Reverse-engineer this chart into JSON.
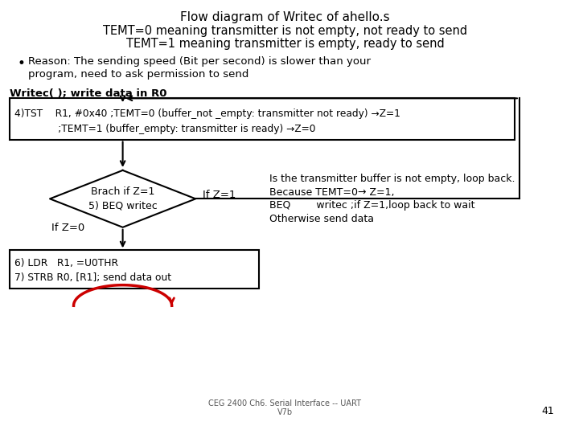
{
  "title_line1": "Flow diagram of Writec of ahello.s",
  "title_line2": "TEMT=0 meaning transmitter is not empty, not ready to send",
  "title_line3": "TEMT=1 meaning transmitter is empty, ready to send",
  "bullet_line1": "Reason: The sending speed (Bit per second) is slower than your",
  "bullet_line2": "program, need to ask permission to send",
  "label_writec": "Writec( ); write data in R0",
  "box_tst_line1": "4)TST    R1, #0x40 ;TEMT=0 (buffer_not _empty: transmitter not ready) →Z=1",
  "box_tst_line2": "              ;TEMT=1 (buffer_empty: transmitter is ready) →Z=0",
  "diamond_line1": "Brach if Z=1",
  "diamond_line2": "5) BEQ writec",
  "if_z1_label": "If Z=1",
  "if_z0_label": "If Z=0",
  "box_ldr_line1": "6) LDR   R1, =U0THR",
  "box_ldr_line2": "7) STRB R0, [R1]; send data out",
  "explain_line1": "Is the transmitter buffer is not empty, loop back.",
  "explain_line2": "Because TEMT=0→ Z=1,",
  "explain_line3": "BEQ        writec ;if Z=1,loop back to wait",
  "explain_line4": "Otherwise send data",
  "footer_text": "CEG 2400 Ch6. Serial Interface -- UART\nV7b",
  "page_num": "41",
  "bg_color": "#ffffff",
  "text_color": "#000000",
  "arrow_color": "#000000",
  "loop_arrow_color": "#cc0000"
}
